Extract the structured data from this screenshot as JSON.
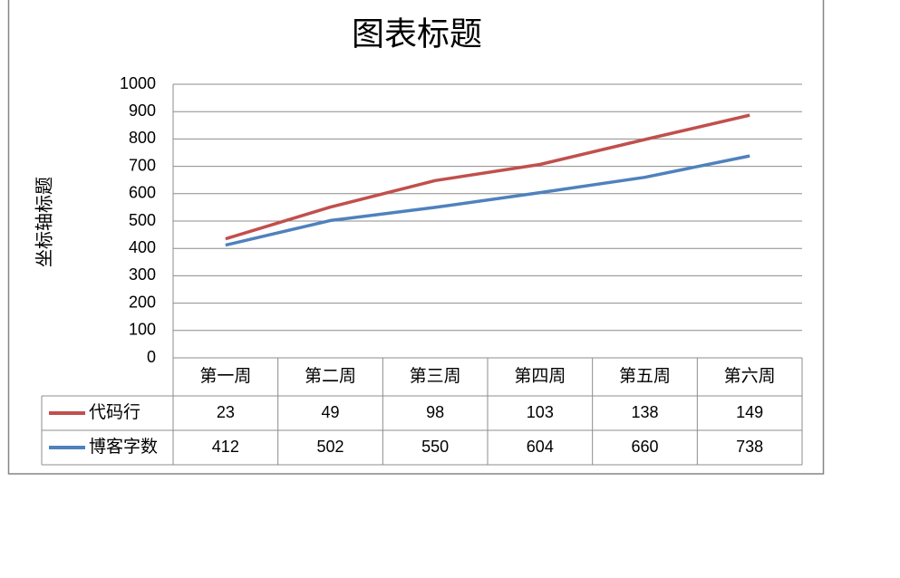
{
  "chart_data": {
    "type": "line",
    "stacked": true,
    "title": "图表标题",
    "y_axis_label": "坐标轴标题",
    "categories": [
      "第一周",
      "第二周",
      "第三周",
      "第四周",
      "第五周",
      "第六周"
    ],
    "series": [
      {
        "name": "代码行",
        "color": "#c0504d",
        "values": [
          23,
          49,
          98,
          103,
          138,
          149
        ]
      },
      {
        "name": "博客字数",
        "color": "#4f81bd",
        "values": [
          412,
          502,
          550,
          604,
          660,
          738
        ]
      }
    ],
    "ylim": [
      0,
      1000
    ],
    "yticks": [
      0,
      100,
      200,
      300,
      400,
      500,
      600,
      700,
      800,
      900,
      1000
    ],
    "grid": true,
    "data_table": true
  }
}
